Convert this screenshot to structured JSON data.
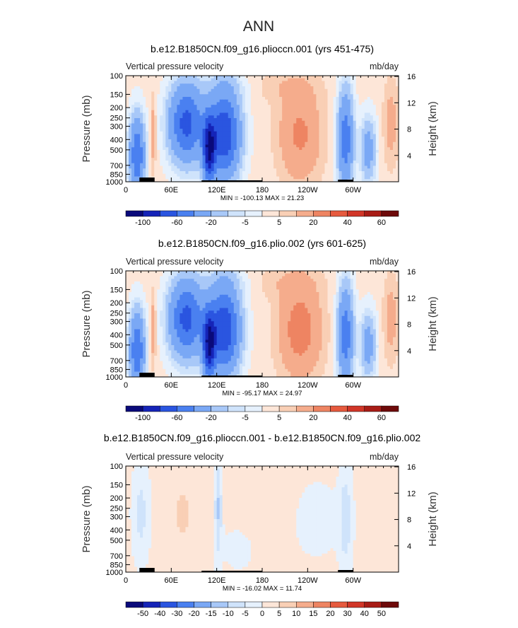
{
  "figure": {
    "title": "ANN"
  },
  "chart_data": [
    {
      "type": "heatmap",
      "title": "b.e12.B1850CN.f09_g16.plioccn.001 (yrs 451-475)",
      "left_string": "Vertical pressure velocity",
      "units": "mb/day",
      "ylabel": "Pressure (mb)",
      "y2label": "Height (km)",
      "x_ticks": [
        "0",
        "60E",
        "120E",
        "180",
        "120W",
        "60W"
      ],
      "x_tick_values": [
        0,
        60,
        120,
        180,
        240,
        300
      ],
      "xlim": [
        0,
        360
      ],
      "y_ticks": [
        "100",
        "150",
        "200",
        "250",
        "300",
        "400",
        "500",
        "700",
        "850",
        "1000"
      ],
      "y_tick_values": [
        100,
        150,
        200,
        250,
        300,
        400,
        500,
        700,
        850,
        1000
      ],
      "y_scale": "log",
      "ylim": [
        1000,
        100
      ],
      "y2_ticks": [
        "4",
        "8",
        "12",
        "16"
      ],
      "y2_tick_values": [
        4,
        8,
        12,
        16
      ],
      "stats": "MIN = -100.13   MAX =  21.23",
      "min": -100.13,
      "max": 21.23,
      "colorbar": {
        "levels": [
          -120,
          -100,
          -80,
          -60,
          -40,
          -20,
          -10,
          -5,
          0,
          5,
          10,
          20,
          30,
          40,
          50,
          60,
          70
        ],
        "labels": [
          "-100",
          "-60",
          "-20",
          "-5",
          "5",
          "20",
          "40",
          "60"
        ],
        "label_levels": [
          -100,
          -60,
          -20,
          -5,
          5,
          20,
          40,
          60
        ],
        "colors": [
          "#0a0a7a",
          "#1524b8",
          "#2a55e0",
          "#4a80f0",
          "#7aa8f5",
          "#a8c8f8",
          "#cfe3fb",
          "#e6f1fd",
          "#fde6d8",
          "#f9cfb5",
          "#f5ac8c",
          "#ee8462",
          "#e65a3e",
          "#d13628",
          "#a81c16",
          "#6e0a0a"
        ]
      }
    },
    {
      "type": "heatmap",
      "title": "b.e12.B1850CN.f09_g16.plio.002 (yrs 601-625)",
      "left_string": "Vertical pressure velocity",
      "units": "mb/day",
      "ylabel": "Pressure (mb)",
      "y2label": "Height (km)",
      "x_ticks": [
        "0",
        "60E",
        "120E",
        "180",
        "120W",
        "60W"
      ],
      "x_tick_values": [
        0,
        60,
        120,
        180,
        240,
        300
      ],
      "xlim": [
        0,
        360
      ],
      "y_ticks": [
        "100",
        "150",
        "200",
        "250",
        "300",
        "400",
        "500",
        "700",
        "850",
        "1000"
      ],
      "y_tick_values": [
        100,
        150,
        200,
        250,
        300,
        400,
        500,
        700,
        850,
        1000
      ],
      "y_scale": "log",
      "ylim": [
        1000,
        100
      ],
      "y2_ticks": [
        "4",
        "8",
        "12",
        "16"
      ],
      "y2_tick_values": [
        4,
        8,
        12,
        16
      ],
      "stats": "MIN = -95.17   MAX =  24.97",
      "min": -95.17,
      "max": 24.97,
      "colorbar": {
        "levels": [
          -120,
          -100,
          -80,
          -60,
          -40,
          -20,
          -10,
          -5,
          0,
          5,
          10,
          20,
          30,
          40,
          50,
          60,
          70
        ],
        "labels": [
          "-100",
          "-60",
          "-20",
          "-5",
          "5",
          "20",
          "40",
          "60"
        ],
        "label_levels": [
          -100,
          -60,
          -20,
          -5,
          5,
          20,
          40,
          60
        ],
        "colors": [
          "#0a0a7a",
          "#1524b8",
          "#2a55e0",
          "#4a80f0",
          "#7aa8f5",
          "#a8c8f8",
          "#cfe3fb",
          "#e6f1fd",
          "#fde6d8",
          "#f9cfb5",
          "#f5ac8c",
          "#ee8462",
          "#e65a3e",
          "#d13628",
          "#a81c16",
          "#6e0a0a"
        ]
      }
    },
    {
      "type": "heatmap",
      "title": "b.e12.B1850CN.f09_g16.plioccn.001 - b.e12.B1850CN.f09_g16.plio.002",
      "left_string": "Vertical pressure velocity",
      "units": "mb/day",
      "ylabel": "Pressure (mb)",
      "y2label": "Height (km)",
      "x_ticks": [
        "0",
        "60E",
        "120E",
        "180",
        "120W",
        "60W"
      ],
      "x_tick_values": [
        0,
        60,
        120,
        180,
        240,
        300
      ],
      "xlim": [
        0,
        360
      ],
      "y_ticks": [
        "100",
        "150",
        "200",
        "250",
        "300",
        "400",
        "500",
        "700",
        "850",
        "1000"
      ],
      "y_tick_values": [
        100,
        150,
        200,
        250,
        300,
        400,
        500,
        700,
        850,
        1000
      ],
      "y_scale": "log",
      "ylim": [
        1000,
        100
      ],
      "y2_ticks": [
        "4",
        "8",
        "12",
        "16"
      ],
      "y2_tick_values": [
        4,
        8,
        12,
        16
      ],
      "stats": "MIN = -16.02   MAX =  11.74",
      "min": -16.02,
      "max": 11.74,
      "colorbar": {
        "levels": [
          -60,
          -50,
          -40,
          -30,
          -20,
          -15,
          -10,
          -5,
          0,
          5,
          10,
          15,
          20,
          30,
          40,
          50,
          60
        ],
        "labels": [
          "-50",
          "-40",
          "-30",
          "-20",
          "-15",
          "-10",
          "-5",
          "0",
          "5",
          "10",
          "15",
          "20",
          "30",
          "40",
          "50"
        ],
        "label_levels": [
          -50,
          -40,
          -30,
          -20,
          -15,
          -10,
          -5,
          0,
          5,
          10,
          15,
          20,
          30,
          40,
          50
        ],
        "colors": [
          "#0a0a7a",
          "#1524b8",
          "#2a55e0",
          "#4a80f0",
          "#7aa8f5",
          "#a8c8f8",
          "#cfe3fb",
          "#e6f1fd",
          "#fde6d8",
          "#f9cfb5",
          "#f5ac8c",
          "#ee8462",
          "#e65a3e",
          "#d13628",
          "#a81c16",
          "#6e0a0a"
        ]
      }
    }
  ]
}
